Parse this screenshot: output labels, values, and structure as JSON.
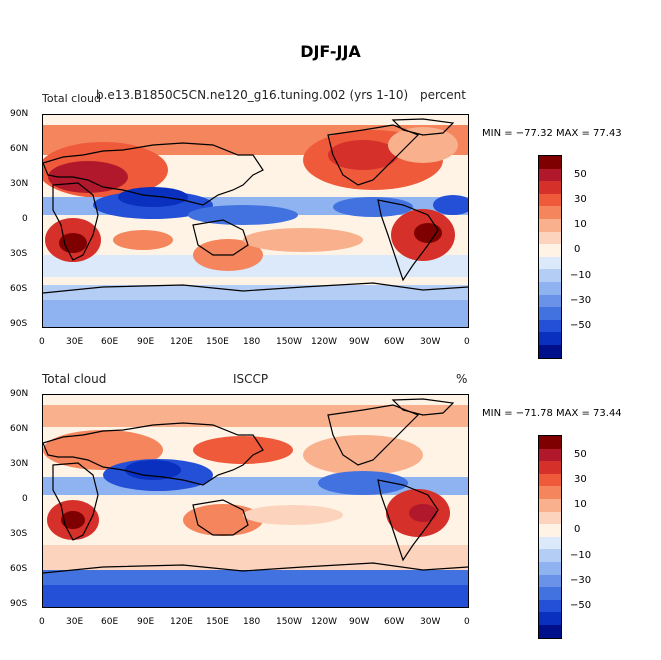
{
  "title": "DJF-JJA",
  "colorbar": {
    "labels": [
      "50",
      "30",
      "10",
      "0",
      "−10",
      "−30",
      "−50"
    ],
    "colors": [
      "#7f0000",
      "#b2182b",
      "#d6302a",
      "#ef5a3a",
      "#f4855c",
      "#f9b08c",
      "#fcd4bd",
      "#fff3e6",
      "#dbe9fb",
      "#b3cdf5",
      "#8fb3f0",
      "#6a92e8",
      "#4272e0",
      "#2350d6",
      "#0a30c0",
      "#00108a"
    ]
  },
  "axes": {
    "lat_ticks": [
      "90N",
      "60N",
      "30N",
      "0",
      "30S",
      "60S",
      "90S"
    ],
    "lon_ticks": [
      "0",
      "30E",
      "60E",
      "90E",
      "120E",
      "150E",
      "180",
      "150W",
      "120W",
      "90W",
      "60W",
      "30W",
      "0"
    ]
  },
  "panels": [
    {
      "left_label": "Total cloud",
      "center_label": "b.e13.B1850C5CN.ne120_g16.tuning.002 (yrs 1-10)",
      "right_label": "percent",
      "minmax": "MIN = −77.32  MAX =  77.43"
    },
    {
      "left_label": "Total cloud",
      "center_label": "ISCCP",
      "right_label": "%",
      "minmax": "MIN = −71.78  MAX =  73.44"
    }
  ]
}
